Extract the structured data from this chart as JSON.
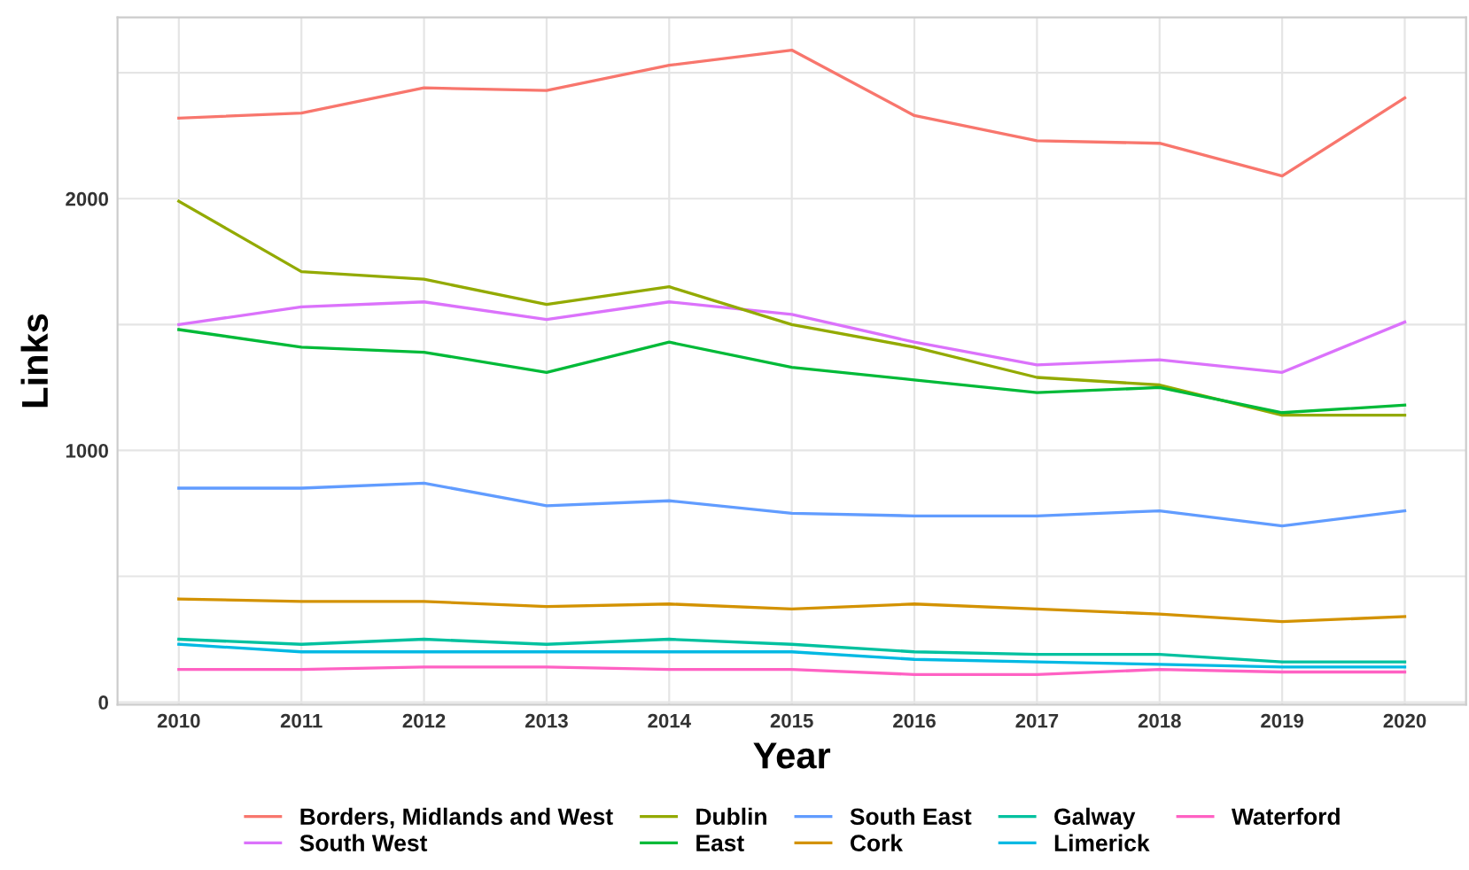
{
  "chart_data": {
    "type": "line",
    "xlabel": "Year",
    "ylabel": "Links",
    "x": [
      2010,
      2011,
      2012,
      2013,
      2014,
      2015,
      2016,
      2017,
      2018,
      2019,
      2020
    ],
    "xlim": [
      2009.5,
      2020.5
    ],
    "xticks": [
      2010,
      2011,
      2012,
      2013,
      2014,
      2015,
      2016,
      2017,
      2018,
      2019,
      2020
    ],
    "ylim": [
      -10,
      2720
    ],
    "yticks": [
      0,
      {
        "value": 500,
        "label": null
      },
      1000,
      {
        "value": 1500,
        "label": null
      },
      2000,
      {
        "value": 2500,
        "label": null
      }
    ],
    "grid": true,
    "legend": "bottom",
    "marker": "none",
    "line_style": "solid",
    "series": [
      {
        "name": "Borders, Midlands and West",
        "color": "#F8766D",
        "values": [
          2320,
          2340,
          2440,
          2430,
          2530,
          2590,
          2330,
          2230,
          2220,
          2090,
          2400
        ]
      },
      {
        "name": "South West",
        "color": "#DB72FB",
        "values": [
          1500,
          1570,
          1590,
          1520,
          1590,
          1540,
          1430,
          1340,
          1360,
          1310,
          1510
        ]
      },
      {
        "name": "Dublin",
        "color": "#93AA00",
        "values": [
          1990,
          1710,
          1680,
          1580,
          1650,
          1500,
          1410,
          1290,
          1260,
          1140,
          1140
        ]
      },
      {
        "name": "East",
        "color": "#00BA38",
        "values": [
          1480,
          1410,
          1390,
          1310,
          1430,
          1330,
          1280,
          1230,
          1250,
          1150,
          1180
        ]
      },
      {
        "name": "South East",
        "color": "#619CFF",
        "values": [
          850,
          850,
          870,
          780,
          800,
          750,
          740,
          740,
          760,
          700,
          760
        ]
      },
      {
        "name": "Cork",
        "color": "#D39200",
        "values": [
          410,
          400,
          400,
          380,
          390,
          370,
          390,
          370,
          350,
          320,
          340
        ]
      },
      {
        "name": "Galway",
        "color": "#00C19F",
        "values": [
          250,
          230,
          250,
          230,
          250,
          230,
          200,
          190,
          190,
          160,
          160
        ]
      },
      {
        "name": "Limerick",
        "color": "#00B9E3",
        "values": [
          230,
          200,
          200,
          200,
          200,
          200,
          170,
          160,
          150,
          140,
          140
        ]
      },
      {
        "name": "Waterford",
        "color": "#FF61C3",
        "values": [
          130,
          130,
          140,
          140,
          130,
          130,
          110,
          110,
          130,
          120,
          120
        ]
      }
    ]
  }
}
